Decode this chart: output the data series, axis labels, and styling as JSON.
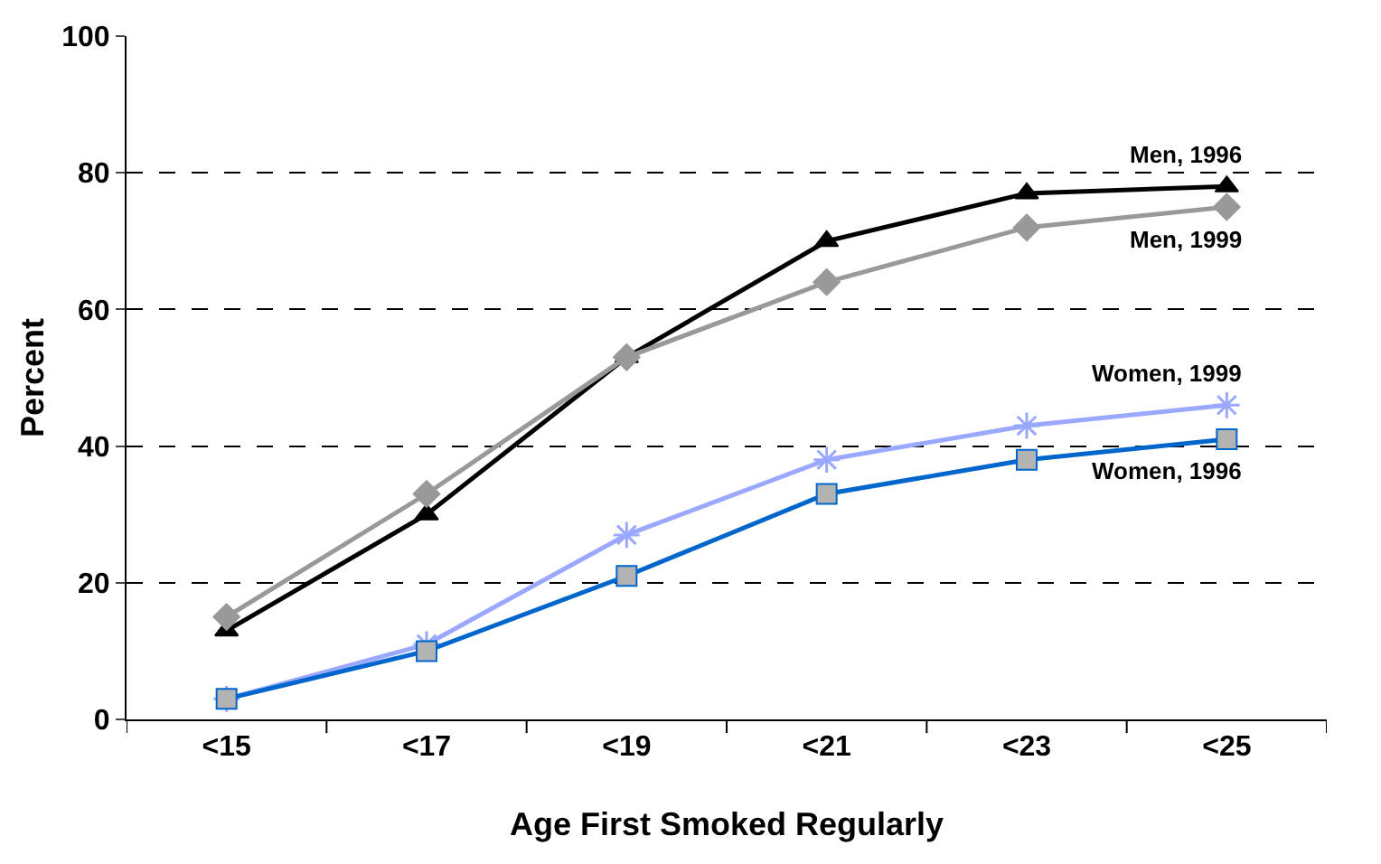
{
  "chart_data": {
    "type": "line",
    "xlabel": "Age First Smoked Regularly",
    "ylabel": "Percent",
    "categories": [
      "<15",
      "<17",
      "<19",
      "<21",
      "<23",
      "<25"
    ],
    "series": [
      {
        "name": "Men, 1996",
        "color": "#000000",
        "marker": "triangle",
        "values": [
          13,
          30,
          53,
          70,
          77,
          78
        ]
      },
      {
        "name": "Men, 1999",
        "color": "#999999",
        "marker": "diamond",
        "values": [
          15,
          33,
          53,
          64,
          72,
          75
        ]
      },
      {
        "name": "Women, 1999",
        "color": "#9aa8ff",
        "marker": "cross",
        "values": [
          3,
          11,
          27,
          38,
          43,
          46
        ]
      },
      {
        "name": "Women, 1996",
        "color": "#0066cc",
        "marker": "square",
        "values": [
          3,
          10,
          21,
          33,
          38,
          41
        ]
      }
    ],
    "ylim": [
      0,
      100
    ],
    "yticks": [
      0,
      20,
      40,
      60,
      80,
      100
    ],
    "grid": "y",
    "legend": false,
    "line_style": "solid"
  }
}
